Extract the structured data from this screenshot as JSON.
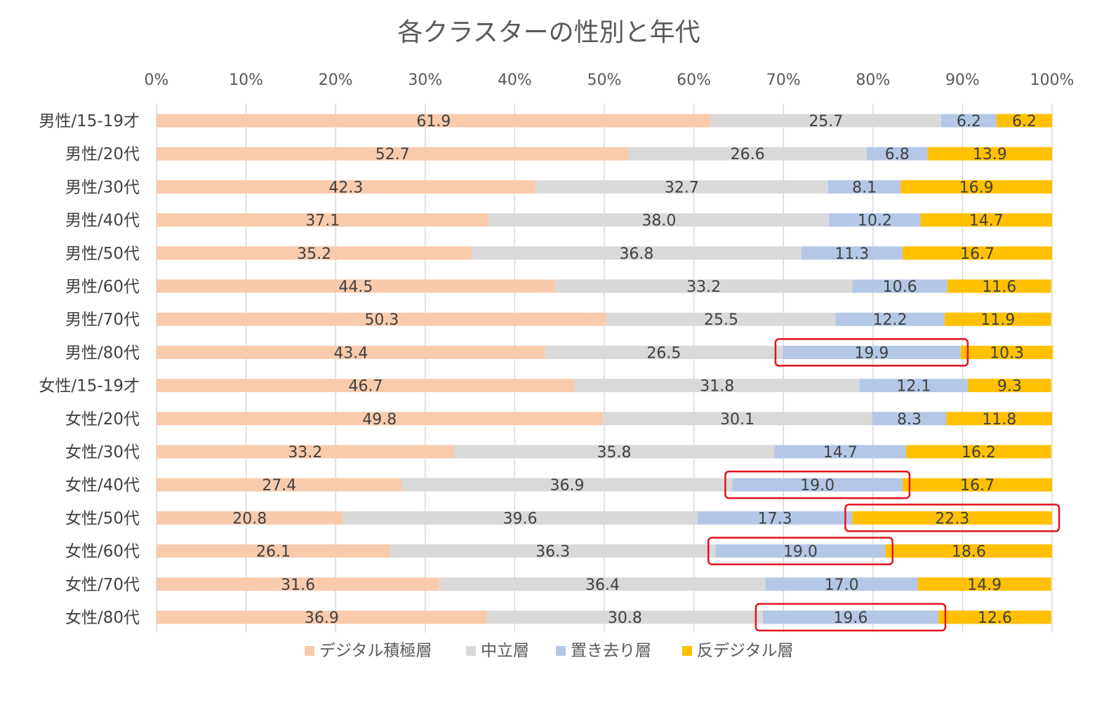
{
  "chart_data": {
    "type": "bar",
    "orientation": "horizontal",
    "stacked": "percent",
    "title": "各クラスターの性別と年代",
    "xlabel": "",
    "ylabel": "",
    "xlim": [
      0,
      100
    ],
    "xticks": [
      "0%",
      "10%",
      "20%",
      "30%",
      "40%",
      "50%",
      "60%",
      "70%",
      "80%",
      "90%",
      "100%"
    ],
    "legend_position": "bottom",
    "categories": [
      "男性/15-19才",
      "男性/20代",
      "男性/30代",
      "男性/40代",
      "男性/50代",
      "男性/60代",
      "男性/70代",
      "男性/80代",
      "女性/15-19才",
      "女性/20代",
      "女性/30代",
      "女性/40代",
      "女性/50代",
      "女性/60代",
      "女性/70代",
      "女性/80代"
    ],
    "series": [
      {
        "name": "デジタル積極層",
        "color": "#f8cbad",
        "values": [
          61.9,
          52.7,
          42.3,
          37.1,
          35.2,
          44.5,
          50.3,
          43.4,
          46.7,
          49.8,
          33.2,
          27.4,
          20.8,
          26.1,
          31.6,
          36.9
        ]
      },
      {
        "name": "中立層",
        "color": "#d9d9d9",
        "values": [
          25.7,
          26.6,
          32.7,
          38.0,
          36.8,
          33.2,
          25.5,
          26.5,
          31.8,
          30.1,
          35.8,
          36.9,
          39.6,
          36.3,
          36.4,
          30.8
        ]
      },
      {
        "name": "置き去り層",
        "color": "#b4c7e7",
        "values": [
          6.2,
          6.8,
          8.1,
          10.2,
          11.3,
          10.6,
          12.2,
          19.9,
          12.1,
          8.3,
          14.7,
          19.0,
          17.3,
          19.0,
          17.0,
          19.6
        ]
      },
      {
        "name": "反デジタル層",
        "color": "#ffc000",
        "values": [
          6.2,
          13.9,
          16.9,
          14.7,
          16.7,
          11.6,
          11.9,
          10.3,
          9.3,
          11.8,
          16.2,
          16.7,
          22.3,
          18.6,
          14.9,
          12.6
        ]
      }
    ],
    "value_labels": [
      [
        "61.9",
        "52.7",
        "42.3",
        "37.1",
        "35.2",
        "44.5",
        "50.3",
        "43.4",
        "46.7",
        "49.8",
        "33.2",
        "27.4",
        "20.8",
        "26.1",
        "31.6",
        "36.9"
      ],
      [
        "25.7",
        "26.6",
        "32.7",
        "38.0",
        "36.8",
        "33.2",
        "25.5",
        "26.5",
        "31.8",
        "30.1",
        "35.8",
        "36.9",
        "39.6",
        "36.3",
        "36.4",
        "30.8"
      ],
      [
        "6.2",
        "6.8",
        "8.1",
        "10.2",
        "11.3",
        "10.6",
        "12.2",
        "19.9",
        "12.1",
        "8.3",
        "14.7",
        "19.0",
        "17.3",
        "19.0",
        "17.0",
        "19.6"
      ],
      [
        "6.2",
        "13.9",
        "16.9",
        "14.7",
        "16.7",
        "11.6",
        "11.9",
        "10.3",
        "9.3",
        "11.8",
        "16.2",
        "16.7",
        "22.3",
        "18.6",
        "14.9",
        "12.6"
      ]
    ],
    "highlights": [
      {
        "category_index": 7,
        "series_index": 2
      },
      {
        "category_index": 11,
        "series_index": 2
      },
      {
        "category_index": 12,
        "series_index": 3
      },
      {
        "category_index": 13,
        "series_index": 2
      },
      {
        "category_index": 15,
        "series_index": 2
      }
    ],
    "highlight_color": "#e3121b"
  }
}
